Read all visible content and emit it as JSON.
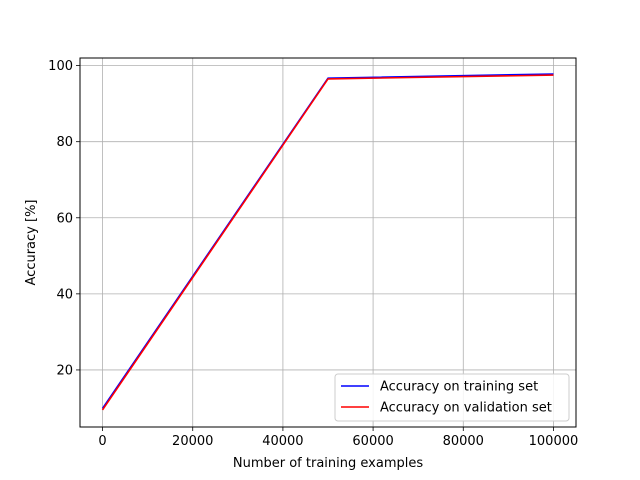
{
  "chart_data": {
    "type": "line",
    "title": "",
    "xlabel": "Number of training examples",
    "ylabel": "Accuracy [%]",
    "xlim": [
      -5000,
      105000
    ],
    "ylim": [
      5,
      102
    ],
    "xticks": [
      0,
      20000,
      40000,
      60000,
      80000,
      100000
    ],
    "xtick_labels": [
      "0",
      "20000",
      "40000",
      "60000",
      "80000",
      "100000"
    ],
    "yticks": [
      20,
      40,
      60,
      80,
      100
    ],
    "ytick_labels": [
      "20",
      "40",
      "60",
      "80",
      "100"
    ],
    "grid": true,
    "legend_position": "lower-right",
    "series": [
      {
        "name": "Accuracy on training set",
        "color": "#0000ff",
        "x": [
          0,
          50000,
          100000
        ],
        "y": [
          9.9,
          96.7,
          97.8
        ]
      },
      {
        "name": "Accuracy on validation set",
        "color": "#ff0000",
        "x": [
          0,
          50000,
          100000
        ],
        "y": [
          9.5,
          96.5,
          97.5
        ]
      }
    ]
  }
}
